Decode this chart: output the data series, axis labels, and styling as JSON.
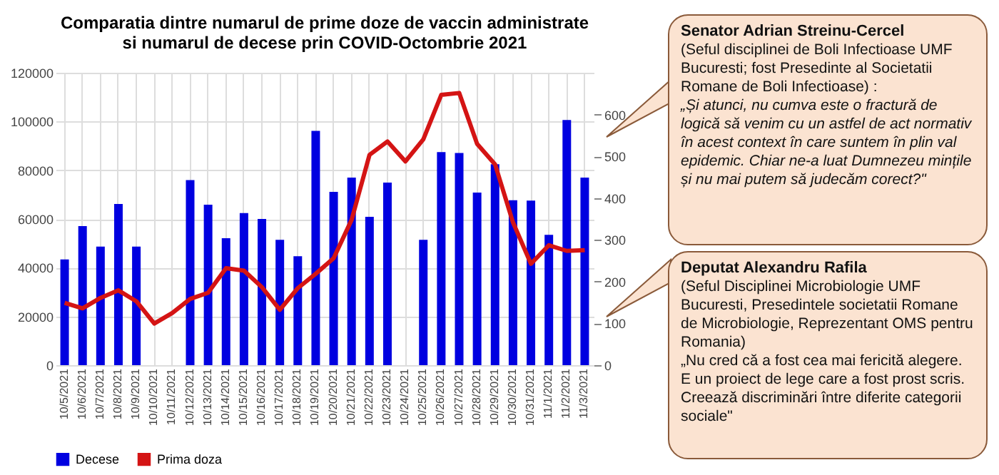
{
  "chart_data": {
    "type": "bar",
    "title": "Comparatia dintre numarul de prime doze de vaccin administrate\nsi numarul de decese prin COVID-Octombrie 2021",
    "categories": [
      "10/5/2021",
      "10/6/2021",
      "10/7/2021",
      "10/8/2021",
      "10/9/2021",
      "10/10/2021",
      "10/11/2021",
      "10/12/2021",
      "10/13/2021",
      "10/14/2021",
      "10/15/2021",
      "10/16/2021",
      "10/17/2021",
      "10/18/2021",
      "10/19/2021",
      "10/20/2021",
      "10/21/2021",
      "10/22/2021",
      "10/23/2021",
      "10/24/2021",
      "10/25/2021",
      "10/26/2021",
      "10/27/2021",
      "10/28/2021",
      "10/29/2021",
      "10/30/2021",
      "10/31/2021",
      "11/1/2021",
      "11/2/2021",
      "11/3/2021"
    ],
    "series": [
      {
        "name": "Decese",
        "axis": "y2",
        "color": "#0000e0",
        "values": [
          253,
          333,
          284,
          386,
          284,
          null,
          null,
          443,
          384,
          304,
          364,
          350,
          300,
          261,
          561,
          415,
          449,
          355,
          437,
          null,
          300,
          510,
          508,
          413,
          481,
          395,
          394,
          312,
          587,
          449
        ]
      },
      {
        "name": "Prima doza",
        "type": "line",
        "color": "#d41414",
        "values": [
          25600,
          23300,
          27600,
          30700,
          26200,
          17100,
          21400,
          27200,
          29700,
          39800,
          38800,
          32000,
          22700,
          31600,
          37500,
          43900,
          59600,
          86300,
          91800,
          83600,
          92700,
          110900,
          111700,
          90800,
          82400,
          58600,
          41600,
          49200,
          46900,
          47200
        ]
      }
    ],
    "ylim": [
      0,
      120000
    ],
    "yticks": [
      0,
      20000,
      40000,
      60000,
      80000,
      100000,
      120000
    ],
    "y2lim": [
      0,
      700
    ],
    "y2ticks": [
      0,
      100,
      200,
      300,
      400,
      500,
      600
    ],
    "grid": true,
    "legend": "bottom",
    "annotations": [
      "Senator Adrian Streinu-Cercel\n(Seful disciplinei de Boli Infectioase UMF Bucuresti; fost Presedinte al Societatii Romane de Boli Infectioase) :\n„Și atunci, nu cumva este o fractură de logică să venim cu un astfel de act normativ în acest context în care suntem în plin val epidemic. Chiar ne-a luat Dumnezeu mințile și nu mai putem să judecăm corect?\"",
      "Deputat Alexandru Rafila\n(Seful Disciplinei Microbiologie UMF Bucuresti, Presedintele societatii Romane de Microbiologie, Reprezentant OMS pentru Romania)\n„Nu cred că a fost cea mai fericită alegere. E un proiect de lege care a fost prost scris. Creează discriminări între diferite categorii sociale\""
    ]
  }
}
